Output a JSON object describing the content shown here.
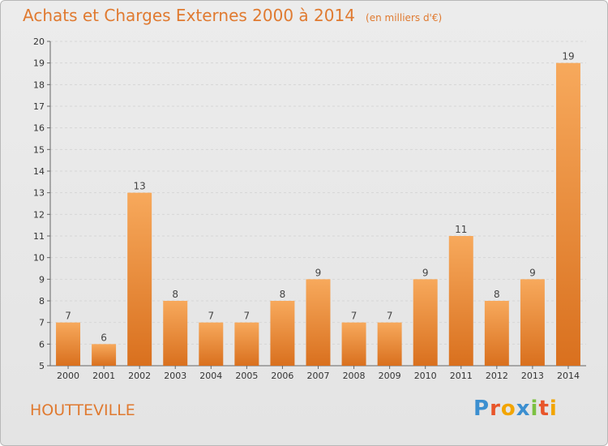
{
  "header": {
    "title": "Achats et Charges Externes 2000 à 2014",
    "unit": "(en milliers d'€)"
  },
  "footer": {
    "commune": "HOUTTEVILLE",
    "logo_letters": [
      "P",
      "r",
      "o",
      "x",
      "i",
      "t",
      "i"
    ],
    "logo_colors": [
      "#3c8fd0",
      "#e8552a",
      "#f2a500",
      "#3c8fd0",
      "#7cc142",
      "#e8552a",
      "#f2a500"
    ]
  },
  "colors": {
    "bar_top": "#f7a95c",
    "bar_bottom": "#d9701e",
    "accent": "#e07a30",
    "grid": "#d6d6d6"
  },
  "chart_data": {
    "type": "bar",
    "title": "Achats et Charges Externes 2000 à 2014",
    "subtitle": "(en milliers d'€)",
    "categories": [
      "2000",
      "2001",
      "2002",
      "2003",
      "2004",
      "2005",
      "2006",
      "2007",
      "2008",
      "2009",
      "2010",
      "2011",
      "2012",
      "2013",
      "2014"
    ],
    "values": [
      7,
      6,
      13,
      8,
      7,
      7,
      8,
      9,
      7,
      7,
      9,
      11,
      8,
      9,
      19
    ],
    "ylim": [
      5,
      20
    ],
    "yticks": [
      5,
      6,
      7,
      8,
      9,
      10,
      11,
      12,
      13,
      14,
      15,
      16,
      17,
      18,
      19,
      20
    ],
    "grid": true,
    "data_labels": true
  }
}
